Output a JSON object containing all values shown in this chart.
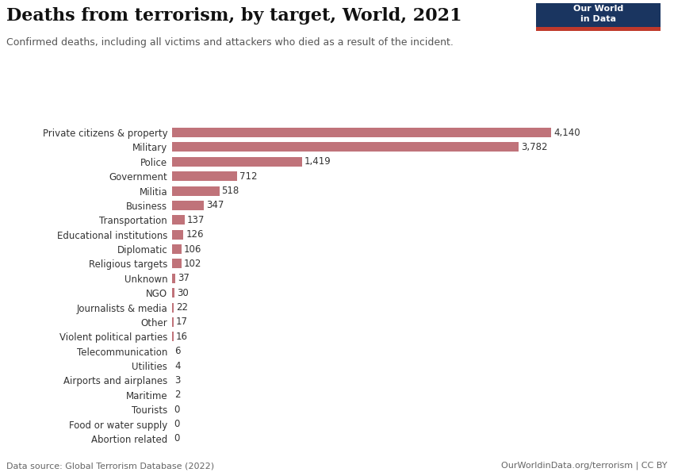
{
  "title": "Deaths from terrorism, by target, World, 2021",
  "subtitle": "Confirmed deaths, including all victims and attackers who died as a result of the incident.",
  "categories": [
    "Private citizens & property",
    "Military",
    "Police",
    "Government",
    "Militia",
    "Business",
    "Transportation",
    "Educational institutions",
    "Diplomatic",
    "Religious targets",
    "Unknown",
    "NGO",
    "Journalists & media",
    "Other",
    "Violent political parties",
    "Telecommunication",
    "Utilities",
    "Airports and airplanes",
    "Maritime",
    "Tourists",
    "Food or water supply",
    "Abortion related"
  ],
  "values": [
    4140,
    3782,
    1419,
    712,
    518,
    347,
    137,
    126,
    106,
    102,
    37,
    30,
    22,
    17,
    16,
    6,
    4,
    3,
    2,
    0,
    0,
    0
  ],
  "bar_color": "#c0737a",
  "background_color": "#ffffff",
  "footer_left": "Data source: Global Terrorism Database (2022)",
  "footer_right": "OurWorldinData.org/terrorism | CC BY",
  "title_fontsize": 16,
  "subtitle_fontsize": 9,
  "label_fontsize": 8.5,
  "value_fontsize": 8.5,
  "footer_fontsize": 8,
  "logo_bg": "#1a3560",
  "logo_red": "#c0392b",
  "logo_text": "Our World\nin Data"
}
